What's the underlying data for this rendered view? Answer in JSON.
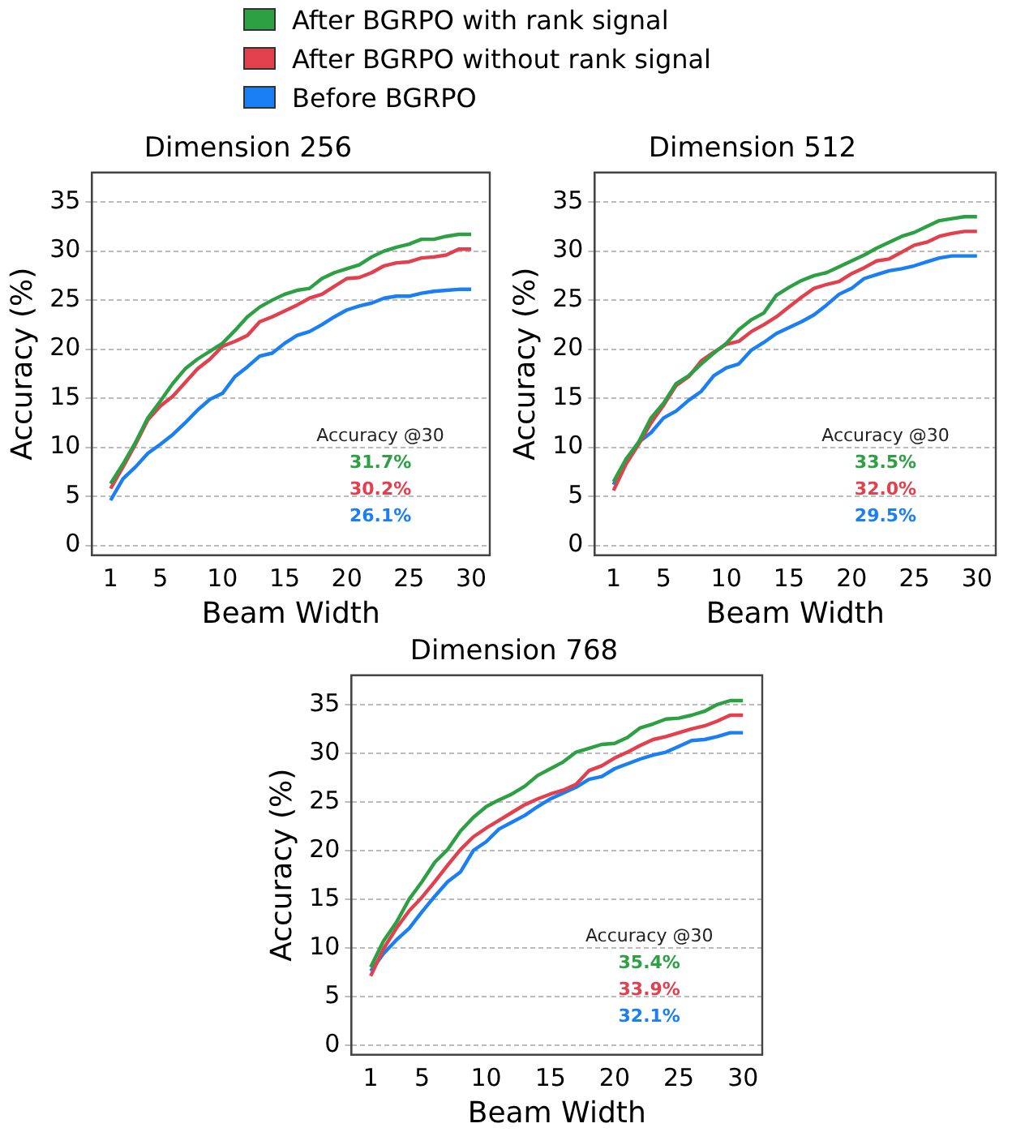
{
  "chart_data": [
    {
      "type": "line",
      "title": "Dimension 256",
      "xlabel": "Beam Width",
      "ylabel": "Accuracy (%)",
      "legend": "top",
      "grid": "y",
      "x": [
        1,
        2,
        3,
        4,
        5,
        6,
        7,
        8,
        9,
        10,
        11,
        12,
        13,
        14,
        15,
        16,
        17,
        18,
        19,
        20,
        21,
        22,
        23,
        24,
        25,
        26,
        27,
        28,
        29,
        30
      ],
      "xlim": [
        -0.5,
        31.5
      ],
      "xticks": [
        1,
        5,
        10,
        15,
        20,
        25,
        30
      ],
      "ylim": [
        -1,
        38
      ],
      "yticks": [
        0,
        5,
        10,
        15,
        20,
        25,
        30,
        35
      ],
      "annotations": [
        "Accuracy @30",
        "31.7%",
        "30.2%",
        "26.1%"
      ],
      "series": [
        {
          "name": "After BGRPO with rank signal",
          "color": "#2ca043",
          "values": [
            6.3,
            8.3,
            10.5,
            13.0,
            14.7,
            16.5,
            18.0,
            19.0,
            19.8,
            20.6,
            21.9,
            23.3,
            24.3,
            25.0,
            25.6,
            26.0,
            26.2,
            27.2,
            27.8,
            28.2,
            28.6,
            29.4,
            30.0,
            30.4,
            30.7,
            31.2,
            31.2,
            31.5,
            31.7,
            31.7
          ]
        },
        {
          "name": "After BGRPO without rank signal",
          "color": "#e2404d",
          "values": [
            5.8,
            8.0,
            10.3,
            12.8,
            14.2,
            15.2,
            16.6,
            18.0,
            19.0,
            20.3,
            20.8,
            21.4,
            22.8,
            23.3,
            23.9,
            24.5,
            25.2,
            25.6,
            26.4,
            27.2,
            27.3,
            27.8,
            28.5,
            28.8,
            28.9,
            29.3,
            29.4,
            29.6,
            30.2,
            30.2
          ]
        },
        {
          "name": "Before BGRPO",
          "color": "#1a7ff5",
          "values": [
            4.6,
            6.8,
            8.0,
            9.4,
            10.3,
            11.3,
            12.5,
            13.8,
            14.9,
            15.5,
            17.2,
            18.2,
            19.3,
            19.6,
            20.6,
            21.4,
            21.8,
            22.5,
            23.3,
            24.0,
            24.4,
            24.7,
            25.2,
            25.4,
            25.4,
            25.7,
            25.9,
            26.0,
            26.1,
            26.1
          ]
        }
      ]
    },
    {
      "type": "line",
      "title": "Dimension 512",
      "xlabel": "Beam Width",
      "ylabel": "Accuracy (%)",
      "grid": "y",
      "x": [
        1,
        2,
        3,
        4,
        5,
        6,
        7,
        8,
        9,
        10,
        11,
        12,
        13,
        14,
        15,
        16,
        17,
        18,
        19,
        20,
        21,
        22,
        23,
        24,
        25,
        26,
        27,
        28,
        29,
        30
      ],
      "xlim": [
        -0.5,
        31.5
      ],
      "xticks": [
        1,
        5,
        10,
        15,
        20,
        25,
        30
      ],
      "ylim": [
        -1,
        38
      ],
      "yticks": [
        0,
        5,
        10,
        15,
        20,
        25,
        30,
        35
      ],
      "annotations": [
        "Accuracy @30",
        "33.5%",
        "32.0%",
        "29.5%"
      ],
      "series": [
        {
          "color": "#2ca043",
          "values": [
            6.5,
            8.8,
            10.5,
            13.0,
            14.5,
            16.5,
            17.3,
            18.5,
            19.6,
            20.6,
            22.0,
            23.0,
            23.7,
            25.5,
            26.3,
            27.0,
            27.5,
            27.8,
            28.4,
            29.0,
            29.6,
            30.3,
            30.9,
            31.5,
            31.9,
            32.5,
            33.1,
            33.3,
            33.5,
            33.5
          ]
        },
        {
          "color": "#e2404d",
          "values": [
            5.6,
            8.3,
            10.3,
            12.5,
            14.3,
            16.3,
            17.2,
            18.8,
            19.7,
            20.5,
            20.8,
            21.8,
            22.5,
            23.3,
            24.3,
            25.3,
            26.2,
            26.6,
            26.9,
            27.7,
            28.3,
            29.0,
            29.2,
            29.9,
            30.6,
            30.9,
            31.5,
            31.8,
            32.0,
            32.0
          ]
        },
        {
          "color": "#1a7ff5",
          "values": [
            6.2,
            8.7,
            10.5,
            11.5,
            13.0,
            13.7,
            14.8,
            15.7,
            17.3,
            18.1,
            18.5,
            19.9,
            20.7,
            21.6,
            22.2,
            22.8,
            23.5,
            24.5,
            25.6,
            26.2,
            27.2,
            27.6,
            28.0,
            28.2,
            28.5,
            28.9,
            29.3,
            29.5,
            29.5,
            29.5
          ]
        }
      ]
    },
    {
      "type": "line",
      "title": "Dimension 768",
      "xlabel": "Beam Width",
      "ylabel": "Accuracy (%)",
      "grid": "y",
      "x": [
        1,
        2,
        3,
        4,
        5,
        6,
        7,
        8,
        9,
        10,
        11,
        12,
        13,
        14,
        15,
        16,
        17,
        18,
        19,
        20,
        21,
        22,
        23,
        24,
        25,
        26,
        27,
        28,
        29,
        30
      ],
      "xlim": [
        -0.5,
        31.5
      ],
      "xticks": [
        1,
        5,
        10,
        15,
        20,
        25,
        30
      ],
      "ylim": [
        -1,
        38
      ],
      "yticks": [
        0,
        5,
        10,
        15,
        20,
        25,
        30,
        35
      ],
      "annotations": [
        "Accuracy @30",
        "35.4%",
        "33.9%",
        "32.1%"
      ],
      "series": [
        {
          "color": "#2ca043",
          "values": [
            8.0,
            10.7,
            12.6,
            15.0,
            16.8,
            18.8,
            20.1,
            22.0,
            23.4,
            24.5,
            25.2,
            25.8,
            26.6,
            27.7,
            28.4,
            29.1,
            30.1,
            30.5,
            30.9,
            31.0,
            31.6,
            32.6,
            33.0,
            33.5,
            33.6,
            33.9,
            34.3,
            35.0,
            35.4,
            35.4
          ]
        },
        {
          "color": "#e2404d",
          "values": [
            7.1,
            9.9,
            12.0,
            13.8,
            15.2,
            16.8,
            18.5,
            20.1,
            21.4,
            22.3,
            23.1,
            23.9,
            24.7,
            25.3,
            25.8,
            26.2,
            26.8,
            28.2,
            28.7,
            29.5,
            30.1,
            30.8,
            31.4,
            31.7,
            32.1,
            32.5,
            32.8,
            33.3,
            33.9,
            33.9
          ]
        },
        {
          "color": "#1a7ff5",
          "values": [
            7.6,
            9.4,
            10.8,
            12.0,
            13.7,
            15.3,
            16.8,
            17.8,
            20.0,
            20.9,
            22.2,
            22.9,
            23.6,
            24.5,
            25.3,
            25.9,
            26.5,
            27.3,
            27.6,
            28.4,
            28.9,
            29.4,
            29.8,
            30.1,
            30.7,
            31.3,
            31.4,
            31.7,
            32.1,
            32.1
          ]
        }
      ]
    }
  ]
}
